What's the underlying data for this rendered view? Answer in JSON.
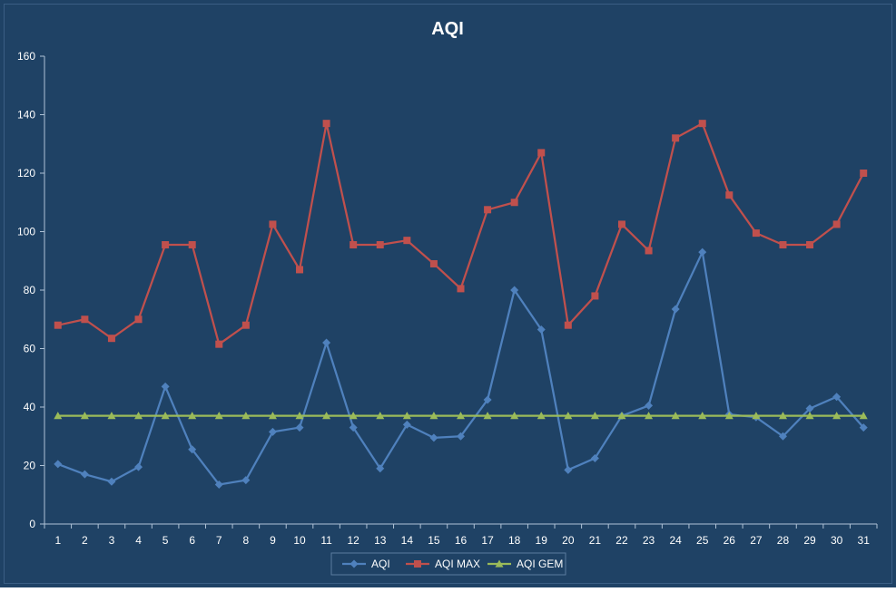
{
  "chart_data": {
    "type": "line",
    "title": "AQI",
    "xlabel": "",
    "ylabel": "",
    "ylim": [
      0,
      160
    ],
    "y_ticks": [
      0,
      20,
      40,
      60,
      80,
      100,
      120,
      140,
      160
    ],
    "categories": [
      "1",
      "2",
      "3",
      "4",
      "5",
      "6",
      "7",
      "8",
      "9",
      "10",
      "11",
      "12",
      "13",
      "14",
      "15",
      "16",
      "17",
      "18",
      "19",
      "20",
      "21",
      "22",
      "23",
      "24",
      "25",
      "26",
      "27",
      "28",
      "29",
      "30",
      "31"
    ],
    "grid": false,
    "legend_position": "bottom",
    "colors": {
      "background": "#1F4265",
      "plot_text": "#FFFFFF",
      "axis": "#AFC2D6"
    },
    "series": [
      {
        "name": "AQI",
        "color": "#4F81BD",
        "marker": "diamond",
        "values": [
          20.5,
          17,
          14.5,
          19.5,
          47,
          25.5,
          13.5,
          15,
          31.5,
          33,
          62,
          33,
          19,
          34,
          29.5,
          30,
          42.5,
          80,
          66.5,
          18.5,
          22.5,
          37,
          40.5,
          73.5,
          93,
          37.5,
          36.5,
          30,
          39.5,
          43.5,
          33
        ]
      },
      {
        "name": "AQI MAX",
        "color": "#C0504D",
        "marker": "square",
        "values": [
          68,
          70,
          63.5,
          70,
          95.5,
          95.5,
          61.5,
          68,
          102.5,
          87,
          137,
          95.5,
          95.5,
          97,
          89,
          80.5,
          107.5,
          110,
          127,
          68,
          78,
          102.5,
          93.5,
          132,
          137,
          112.5,
          99.5,
          95.5,
          95.5,
          102.5,
          120
        ]
      },
      {
        "name": "AQI GEM",
        "color": "#9BBB59",
        "marker": "triangle",
        "values": [
          37,
          37,
          37,
          37,
          37,
          37,
          37,
          37,
          37,
          37,
          37,
          37,
          37,
          37,
          37,
          37,
          37,
          37,
          37,
          37,
          37,
          37,
          37,
          37,
          37,
          37,
          37,
          37,
          37,
          37,
          37
        ]
      }
    ]
  }
}
